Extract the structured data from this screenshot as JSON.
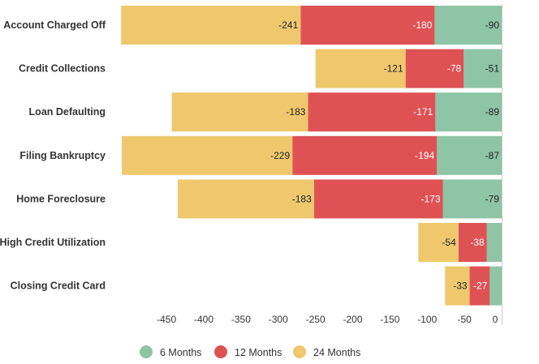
{
  "chart_data": {
    "type": "bar",
    "orientation": "horizontal",
    "stacked": true,
    "categories": [
      "Account Charged Off",
      "Credit Collections",
      "Loan Defaulting",
      "Filing Bankruptcy",
      "Home Foreclosure",
      "High Credit Utilization",
      "Closing Credit Card"
    ],
    "series": [
      {
        "name": "6 Months",
        "color": "#8dc5a6",
        "values": [
          -90,
          -51,
          -89,
          -87,
          -79,
          -20,
          -16
        ]
      },
      {
        "name": "12 Months",
        "color": "#df5254",
        "values": [
          -180,
          -78,
          -171,
          -194,
          -173,
          -38,
          -27
        ]
      },
      {
        "name": "24 Months",
        "color": "#efc86e",
        "values": [
          -241,
          -121,
          -183,
          -229,
          -183,
          -54,
          -33
        ]
      }
    ],
    "data_labels": [
      [
        "-90",
        "-51",
        "-89",
        "-87",
        "-79",
        "",
        ""
      ],
      [
        "-180",
        "-78",
        "-171",
        "-194",
        "-173",
        "-38",
        "-27"
      ],
      [
        "-241",
        "-121",
        "-183",
        "-229",
        "-183",
        "-54",
        "-33"
      ]
    ],
    "label_colors": [
      "#222222",
      "#ffffff",
      "#222222"
    ],
    "xlim": [
      -500,
      0
    ],
    "xticks": [
      -450,
      -400,
      -350,
      -300,
      -250,
      -200,
      -150,
      -100,
      -50,
      0
    ],
    "xtick_labels": [
      "-450",
      "-400",
      "-350",
      "-300",
      "-250",
      "-200",
      "-150",
      "-100",
      "-50",
      "0"
    ],
    "grid": false,
    "legend": "bottom"
  }
}
